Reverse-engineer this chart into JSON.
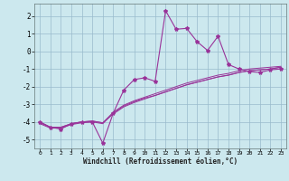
{
  "xlabel": "Windchill (Refroidissement éolien,°C)",
  "bg_color": "#cce8ee",
  "line_color": "#993399",
  "xlim": [
    -0.5,
    23.5
  ],
  "ylim": [
    -5.5,
    2.7
  ],
  "yticks": [
    -5,
    -4,
    -3,
    -2,
    -1,
    0,
    1,
    2
  ],
  "xticks": [
    0,
    1,
    2,
    3,
    4,
    5,
    6,
    7,
    8,
    9,
    10,
    11,
    12,
    13,
    14,
    15,
    16,
    17,
    18,
    19,
    20,
    21,
    22,
    23
  ],
  "series1_x": [
    0,
    1,
    2,
    3,
    4,
    5,
    6,
    7,
    8,
    9,
    10,
    11,
    12,
    13,
    14,
    15,
    16,
    17,
    18,
    19,
    20,
    21,
    22,
    23
  ],
  "series1_y": [
    -4.0,
    -4.3,
    -4.4,
    -4.1,
    -4.0,
    -4.0,
    -5.2,
    -3.5,
    -2.2,
    -1.6,
    -1.5,
    -1.7,
    2.3,
    1.25,
    1.3,
    0.55,
    0.05,
    0.85,
    -0.75,
    -1.0,
    -1.15,
    -1.2,
    -1.05,
    -1.0
  ],
  "series2_x": [
    0,
    1,
    2,
    3,
    4,
    5,
    6,
    7,
    8,
    9,
    10,
    11,
    12,
    13,
    14,
    15,
    16,
    17,
    18,
    19,
    20,
    21,
    22,
    23
  ],
  "series2_y": [
    -4.0,
    -4.3,
    -4.3,
    -4.1,
    -4.0,
    -3.95,
    -4.05,
    -3.55,
    -3.15,
    -2.9,
    -2.7,
    -2.5,
    -2.3,
    -2.1,
    -1.9,
    -1.75,
    -1.6,
    -1.45,
    -1.35,
    -1.2,
    -1.1,
    -1.05,
    -1.0,
    -0.9
  ],
  "series3_x": [
    0,
    1,
    2,
    3,
    4,
    5,
    6,
    7,
    8,
    9,
    10,
    11,
    12,
    13,
    14,
    15,
    16,
    17,
    18,
    19,
    20,
    21,
    22,
    23
  ],
  "series3_y": [
    -4.05,
    -4.3,
    -4.3,
    -4.1,
    -4.0,
    -3.95,
    -4.05,
    -3.45,
    -3.05,
    -2.8,
    -2.6,
    -2.4,
    -2.2,
    -2.0,
    -1.8,
    -1.65,
    -1.5,
    -1.35,
    -1.25,
    -1.1,
    -1.0,
    -0.95,
    -0.9,
    -0.85
  ],
  "series4_x": [
    0,
    1,
    2,
    3,
    4,
    5,
    6,
    7,
    8,
    9,
    10,
    11,
    12,
    13,
    14,
    15,
    16,
    17,
    18,
    19,
    20,
    21,
    22,
    23
  ],
  "series4_y": [
    -4.1,
    -4.35,
    -4.35,
    -4.15,
    -4.05,
    -4.0,
    -4.1,
    -3.5,
    -3.1,
    -2.85,
    -2.65,
    -2.5,
    -2.3,
    -2.1,
    -1.9,
    -1.75,
    -1.6,
    -1.45,
    -1.35,
    -1.2,
    -1.1,
    -1.05,
    -1.0,
    -0.9
  ]
}
